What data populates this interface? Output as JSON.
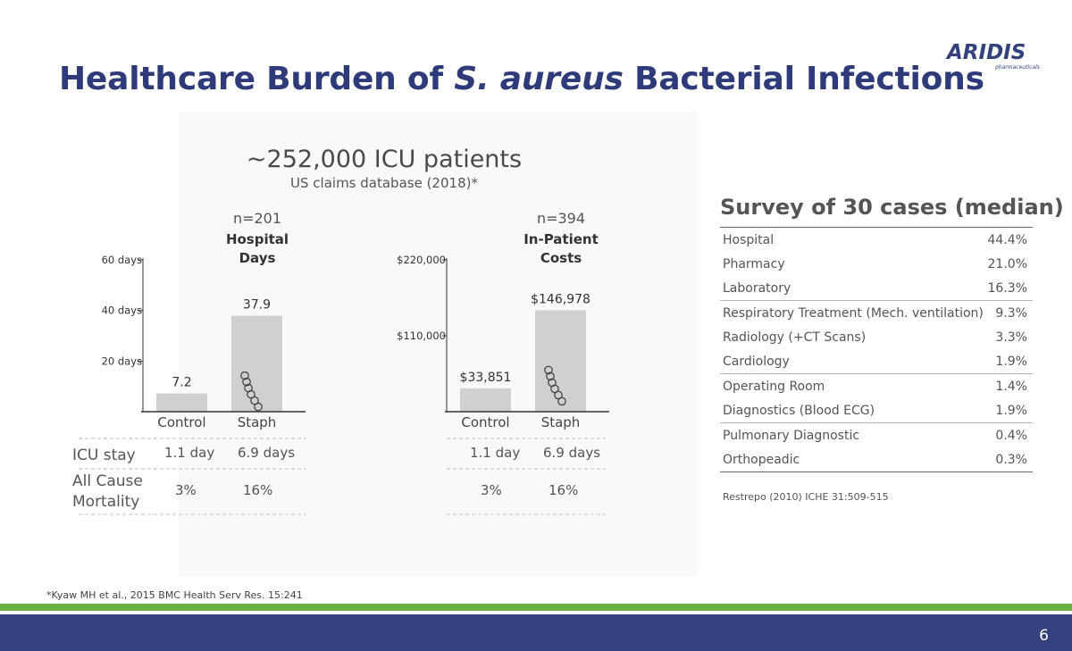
{
  "slide": {
    "title_parts": [
      "Healthcare Burden of ",
      "S. aureus",
      " Bacterial Infections"
    ],
    "page_number": "6",
    "footnote": "*Kyaw MH et al., 2015 BMC Health Serv Res. 15:241",
    "logo": {
      "text": "ARIDIS",
      "subtext": "pharmaceuticals"
    },
    "colors": {
      "title": "#2e3a7a",
      "green_band": "#6cb043",
      "blue_band": "#33417f",
      "bar": "#d0d0d0"
    }
  },
  "study": {
    "heading": "~252,000 ICU patients",
    "subheading": "US claims database (2018)*",
    "comparison_rows": [
      {
        "label": "ICU stay",
        "control": "1.1 day",
        "staph": "6.9 days"
      },
      {
        "label_lines": [
          "All Cause",
          "Mortality"
        ],
        "control": "3%",
        "staph": "16%"
      }
    ]
  },
  "chart_data": [
    {
      "type": "bar",
      "n_label": "n=201",
      "title_lines": [
        "Hospital",
        "Days"
      ],
      "categories": [
        "Control",
        "Staph"
      ],
      "values": [
        7.2,
        37.9
      ],
      "value_labels": [
        "7.2",
        "37.9"
      ],
      "ylim": [
        0,
        60
      ],
      "yticks": [
        {
          "value": 20,
          "label": "20 days"
        },
        {
          "value": 40,
          "label": "40 days"
        },
        {
          "value": 60,
          "label": "60 days"
        }
      ],
      "grid": false,
      "bar_icon": "bacteria-chain-icon"
    },
    {
      "type": "bar",
      "n_label": "n=394",
      "title_lines": [
        "In-Patient",
        "Costs"
      ],
      "categories": [
        "Control",
        "Staph"
      ],
      "values": [
        33851,
        146978
      ],
      "value_labels": [
        "$33,851",
        "$146,978"
      ],
      "ylim": [
        0,
        220000
      ],
      "yticks": [
        {
          "value": 110000,
          "label": "$110,000"
        },
        {
          "value": 220000,
          "label": "$220,000"
        }
      ],
      "grid": false,
      "bar_icon": "bacteria-chain-icon"
    }
  ],
  "survey": {
    "title": "Survey of 30 cases (median)",
    "source": "Restrepo (2010) ICHE 31:509-515",
    "groups": [
      [
        {
          "label": "Hospital",
          "value": "44.4%"
        },
        {
          "label": "Pharmacy",
          "value": "21.0%"
        },
        {
          "label": "Laboratory",
          "value": "16.3%"
        }
      ],
      [
        {
          "label": "Respiratory Treatment (Mech. ventilation)",
          "value": "9.3%"
        },
        {
          "label": "Radiology (+CT Scans)",
          "value": "3.3%"
        },
        {
          "label": "Cardiology",
          "value": "1.9%"
        }
      ],
      [
        {
          "label": "Operating Room",
          "value": "1.4%"
        },
        {
          "label": "Diagnostics (Blood ECG)",
          "value": "1.9%"
        }
      ],
      [
        {
          "label": "Pulmonary Diagnostic",
          "value": "0.4%"
        },
        {
          "label": "Orthopeadic",
          "value": "0.3%"
        }
      ]
    ]
  }
}
